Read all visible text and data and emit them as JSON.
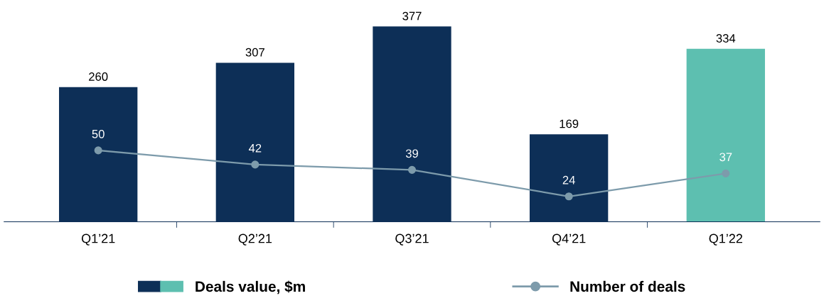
{
  "chart_data": {
    "type": "bar",
    "categories": [
      "Q1’21",
      "Q2’21",
      "Q3’21",
      "Q4’21",
      "Q1’22"
    ],
    "data_labels": true,
    "legend": "bottom",
    "grid": false,
    "series": [
      {
        "name": "Deals value, $m",
        "colors": [
          "#0d2f57",
          "#0d2f57",
          "#0d2f57",
          "#0d2f57",
          "#5dbfb0"
        ],
        "values": [
          260,
          307,
          377,
          169,
          334
        ]
      },
      {
        "name": "Number of deals",
        "type": "line",
        "axis": "y2",
        "color": "#7d9bab",
        "marker": "circle",
        "values": [
          50,
          42,
          39,
          24,
          37
        ]
      }
    ]
  }
}
